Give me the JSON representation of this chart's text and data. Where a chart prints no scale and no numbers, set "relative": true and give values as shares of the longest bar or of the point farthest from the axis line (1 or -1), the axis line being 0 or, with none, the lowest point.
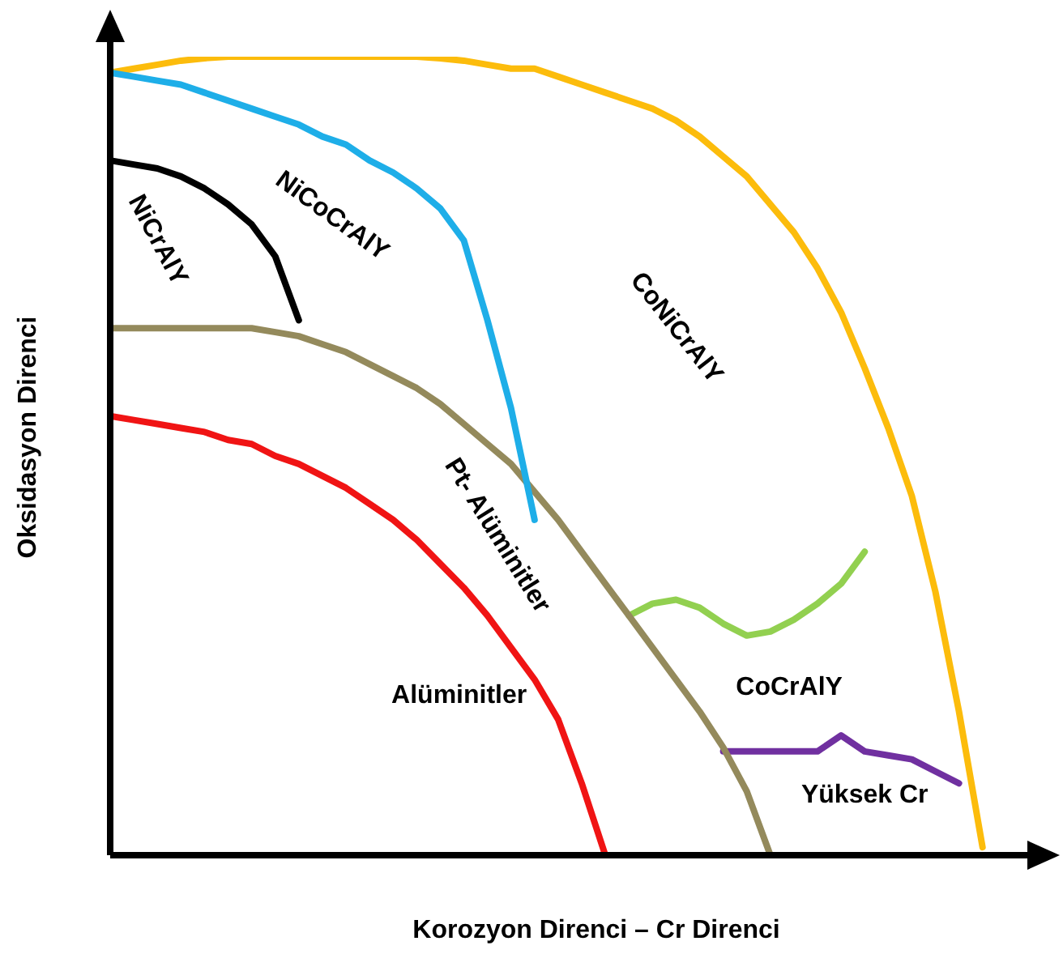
{
  "chart_data": {
    "type": "line",
    "relative": true,
    "xlabel": "Korozyon Direnci – Cr Direnci",
    "ylabel": "Oksidasyon Direnci",
    "tick_labels": false,
    "grid": false,
    "legend": false,
    "marker": "none",
    "line_style": "solid",
    "categories": [
      null,
      null,
      null,
      null,
      null,
      null,
      null,
      null,
      null,
      null,
      null,
      null,
      null,
      null,
      null,
      null,
      null,
      null,
      null,
      null,
      null,
      null,
      null,
      null,
      null,
      null,
      null,
      null,
      null,
      null,
      null,
      null,
      null,
      null,
      null,
      null,
      null,
      null,
      null,
      null,
      null
    ],
    "series": [
      {
        "name": "NiCrAlY",
        "color": "#000000",
        "values": [
          0.87,
          0.865,
          0.86,
          0.85,
          0.835,
          0.815,
          0.79,
          0.75,
          0.67,
          null,
          null,
          null,
          null,
          null,
          null,
          null,
          null,
          null,
          null,
          null,
          null,
          null,
          null,
          null,
          null,
          null,
          null,
          null,
          null,
          null,
          null,
          null,
          null,
          null,
          null,
          null,
          null,
          null,
          null,
          null,
          null
        ]
      },
      {
        "name": "NiCoCrAlY",
        "color": "#1eaee8",
        "values": [
          0.98,
          0.975,
          0.97,
          0.965,
          0.955,
          0.945,
          0.935,
          0.925,
          0.915,
          0.9,
          0.89,
          0.87,
          0.855,
          0.835,
          0.81,
          0.77,
          0.67,
          0.56,
          0.42,
          null,
          null,
          null,
          null,
          null,
          null,
          null,
          null,
          null,
          null,
          null,
          null,
          null,
          null,
          null,
          null,
          null,
          null,
          null,
          null,
          null,
          null
        ]
      },
      {
        "name": "CoNiCrAlY",
        "color": "#fcbc0c",
        "values": [
          0.98,
          0.985,
          0.99,
          0.995,
          0.998,
          1.0,
          1.0,
          1.0,
          1.0,
          1.0,
          1.0,
          1.0,
          1.0,
          1.0,
          0.998,
          0.995,
          0.99,
          0.985,
          0.985,
          0.975,
          0.965,
          0.955,
          0.945,
          0.935,
          0.92,
          0.9,
          0.875,
          0.85,
          0.815,
          0.78,
          0.735,
          0.68,
          0.61,
          0.535,
          0.45,
          0.33,
          0.18,
          0.01,
          null,
          null,
          null
        ]
      },
      {
        "name": "Pt- Alüminitler",
        "color": "#948a5c",
        "values": [
          0.66,
          0.66,
          0.66,
          0.66,
          0.66,
          0.66,
          0.66,
          0.655,
          0.65,
          0.64,
          0.63,
          0.615,
          0.6,
          0.585,
          0.565,
          0.54,
          0.515,
          0.49,
          0.455,
          0.42,
          0.38,
          0.34,
          0.3,
          0.26,
          0.22,
          0.18,
          0.135,
          0.08,
          0.0,
          null,
          null,
          null,
          null,
          null,
          null,
          null,
          null,
          null,
          null,
          null,
          null
        ]
      },
      {
        "name": "Alüminitler",
        "color": "#f01414",
        "values": [
          0.55,
          0.545,
          0.54,
          0.535,
          0.53,
          0.52,
          0.515,
          0.5,
          0.49,
          0.475,
          0.46,
          0.44,
          0.42,
          0.395,
          0.365,
          0.335,
          0.3,
          0.26,
          0.22,
          0.17,
          0.09,
          0.0,
          null,
          null,
          null,
          null,
          null,
          null,
          null,
          null,
          null,
          null,
          null,
          null,
          null,
          null,
          null,
          null,
          null,
          null,
          null
        ]
      },
      {
        "name": "CoCrAlY",
        "color": "#92d050",
        "values": [
          null,
          null,
          null,
          null,
          null,
          null,
          null,
          null,
          null,
          null,
          null,
          null,
          null,
          null,
          null,
          null,
          null,
          null,
          null,
          null,
          null,
          null,
          0.3,
          0.315,
          0.32,
          0.31,
          0.29,
          0.275,
          0.28,
          0.295,
          0.315,
          0.34,
          0.38,
          null,
          null,
          null,
          null,
          null,
          null,
          null,
          null
        ]
      },
      {
        "name": "Yüksek Cr",
        "color": "#7030a0",
        "values": [
          null,
          null,
          null,
          null,
          null,
          null,
          null,
          null,
          null,
          null,
          null,
          null,
          null,
          null,
          null,
          null,
          null,
          null,
          null,
          null,
          null,
          null,
          null,
          null,
          null,
          null,
          0.13,
          0.13,
          0.13,
          0.13,
          0.13,
          0.15,
          0.13,
          0.125,
          0.12,
          0.105,
          0.09,
          null,
          null,
          null,
          null
        ]
      }
    ]
  }
}
